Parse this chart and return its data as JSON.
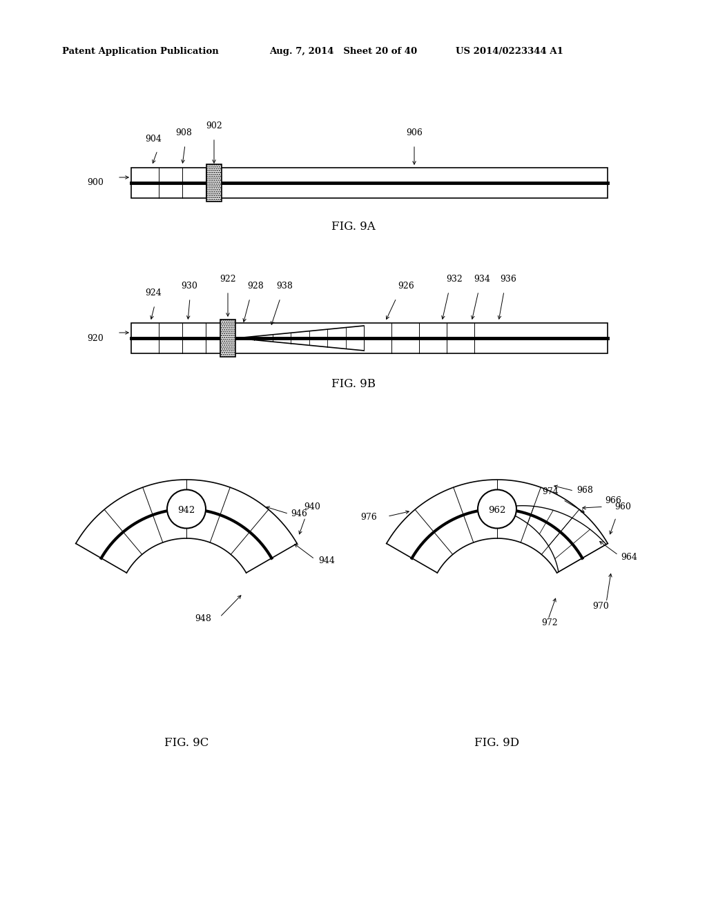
{
  "background_color": "#ffffff",
  "header_left": "Patent Application Publication",
  "header_mid": "Aug. 7, 2014   Sheet 20 of 40",
  "header_right": "US 2014/0223344 A1",
  "fig9a_label": "FIG. 9A",
  "fig9b_label": "FIG. 9B",
  "fig9c_label": "FIG. 9C",
  "fig9d_label": "FIG. 9D"
}
